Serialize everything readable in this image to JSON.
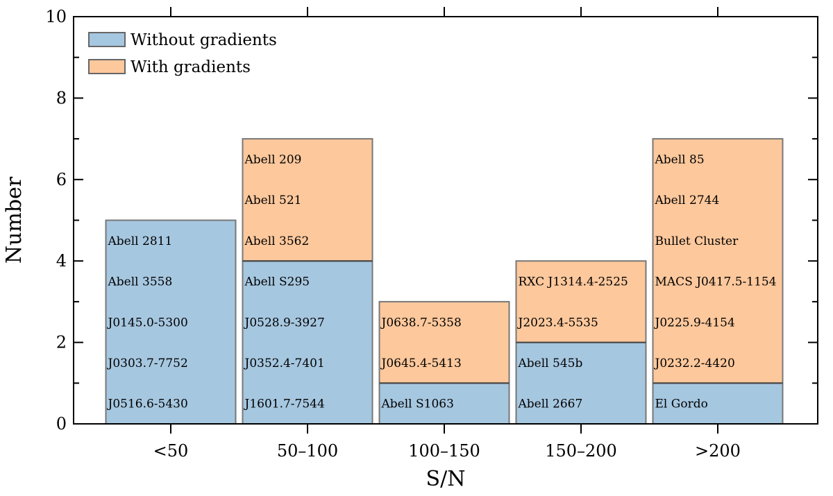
{
  "chart_data": {
    "type": "bar",
    "stacked": true,
    "xlabel": "S/N",
    "ylabel": "Number",
    "ylim": [
      0,
      10
    ],
    "yticks": [
      "0",
      "2",
      "4",
      "6",
      "8",
      "10"
    ],
    "categories": [
      "<50",
      "50–100",
      "100–150",
      "150–200",
      ">200"
    ],
    "series": [
      {
        "name": "Without gradients",
        "color": "#a6c7e0",
        "values": [
          5,
          4,
          1,
          2,
          1
        ]
      },
      {
        "name": "With gradients",
        "color": "#fdc89c",
        "values": [
          0,
          3,
          2,
          2,
          6
        ]
      }
    ],
    "legend_position": "top-left",
    "cluster_labels": [
      [
        "J0516.6-5430",
        "J0303.7-7752",
        "J0145.0-5300",
        "Abell 3558",
        "Abell 2811"
      ],
      [
        "J1601.7-7544",
        "J0352.4-7401",
        "J0528.9-3927",
        "Abell S295",
        "Abell 3562",
        "Abell 521",
        "Abell 209"
      ],
      [
        "Abell S1063",
        "J0645.4-5413",
        "J0638.7-5358"
      ],
      [
        "Abell 2667",
        "Abell 545b",
        "J2023.4-5535",
        "RXC J1314.4-2525"
      ],
      [
        "El Gordo",
        "J0232.2-4420",
        "J0225.9-4154",
        "MACS J0417.5-1154",
        "Bullet Cluster",
        "Abell 2744",
        "Abell 85"
      ]
    ]
  }
}
